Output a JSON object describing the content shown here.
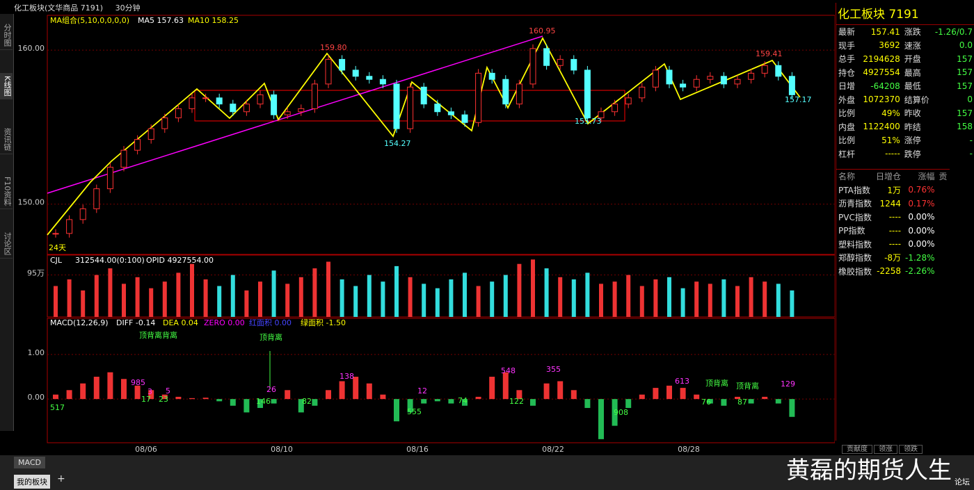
{
  "header": {
    "title": "化工板块(文华商品 7191)",
    "period": "30分钟"
  },
  "side_tabs": [
    "分时图",
    "K线图",
    "资讯链",
    "F10资料",
    "讨论区"
  ],
  "price_panel": {
    "legend": [
      "MA组合(5,10,0,0,0,0)",
      "MA5 157.63",
      "MA10 158.25"
    ],
    "ylim": [
      146.74,
      162.26
    ],
    "yticks": [
      {
        "value": 160,
        "label": "160.00"
      },
      {
        "value": 150,
        "label": "150.00"
      }
    ],
    "closes": [
      148.1,
      149.0,
      149.7,
      151.0,
      152.4,
      153.5,
      154.2,
      154.9,
      155.6,
      156.2,
      156.9,
      156.9,
      156.5,
      156.0,
      156.5,
      157.1,
      155.8,
      156.0,
      156.2,
      157.8,
      159.4,
      158.7,
      158.3,
      158.1,
      157.8,
      154.9,
      157.6,
      156.5,
      156.0,
      155.8,
      155.3,
      158.5,
      158.1,
      156.5,
      157.8,
      160.1,
      159.0,
      159.4,
      158.7,
      155.6,
      156.0,
      156.5,
      156.9,
      157.6,
      158.7,
      157.8,
      157.6,
      158.1,
      158.3,
      157.8,
      158.1,
      158.5,
      159.0,
      158.3,
      157.1
    ],
    "annotations": [
      "159.80",
      "160.95",
      "154.27",
      "155.73",
      "159.41",
      "157.17"
    ],
    "period_label": "24天"
  },
  "volume_panel": {
    "legend": [
      "CJL",
      "312544.00(0:100)",
      "OPID 4927554.00"
    ],
    "ylim": [
      0,
      140
    ],
    "yticks": [
      {
        "value": 95,
        "label": "95万"
      }
    ],
    "values": [
      70,
      85,
      60,
      95,
      110,
      75,
      90,
      65,
      80,
      100,
      120,
      85,
      70,
      95,
      60,
      80,
      105,
      75,
      90,
      110,
      125,
      85,
      70,
      95,
      80,
      115,
      90,
      75,
      65,
      85,
      100,
      70,
      80,
      95,
      120,
      130,
      110,
      90,
      85,
      100,
      75,
      80,
      95,
      70,
      85,
      90,
      65,
      80,
      75,
      85,
      70,
      90,
      80,
      75,
      60
    ]
  },
  "macd_panel": {
    "legend": [
      "MACD(12,26,9)",
      "DIFF -0.14",
      "DEA 0.04",
      "ZERO 0.00",
      "红面积 0.00",
      "绿面积 -1.50"
    ],
    "ylim": [
      -0.98,
      1.81
    ],
    "yticks": [
      {
        "value": 1,
        "label": "1.00"
      },
      {
        "value": 0,
        "label": "0.00"
      }
    ],
    "values": [
      0.1,
      0.2,
      0.35,
      0.5,
      0.6,
      0.45,
      0.3,
      0.2,
      0.1,
      0.05,
      0.02,
      0.03,
      -0.05,
      -0.15,
      -0.3,
      -0.2,
      -0.1,
      0.2,
      -0.3,
      -0.15,
      0.2,
      0.4,
      0.5,
      0.35,
      0.1,
      -0.5,
      -0.3,
      -0.1,
      -0.05,
      -0.1,
      -0.15,
      0.05,
      0.5,
      0.6,
      0.2,
      -0.15,
      0.35,
      0.4,
      0.2,
      -0.2,
      -0.9,
      -0.6,
      -0.2,
      0.1,
      0.25,
      0.3,
      0.25,
      0.1,
      -0.1,
      -0.15,
      0.05,
      -0.1,
      0.05,
      -0.1,
      -0.4
    ],
    "annotations": [
      "517",
      "顶背离背离",
      "985",
      "3",
      "17",
      "23",
      "5",
      "顶背离",
      "26",
      "146",
      "82",
      "138",
      "555",
      "12",
      "74",
      "548",
      "122",
      "355",
      "908",
      "613",
      "76",
      "顶背离",
      "87",
      "顶背离",
      "129"
    ]
  },
  "x_axis": [
    "08/06",
    "08/10",
    "08/16",
    "08/22",
    "08/28"
  ],
  "quote": {
    "title": "化工板块 7191",
    "rows": [
      [
        "最新",
        "157.41",
        "涨跌",
        "-1.26/0.7"
      ],
      [
        "现手",
        "3692",
        "速涨",
        "0.0"
      ],
      [
        "总手",
        "2194628",
        "开盘",
        "157"
      ],
      [
        "持仓",
        "4927554",
        "最高",
        "157"
      ],
      [
        "日增",
        "-64208",
        "最低",
        "157"
      ],
      [
        "外盘",
        "1072370",
        "结算价",
        "0"
      ],
      [
        "比例",
        "49%",
        "昨收",
        "157"
      ],
      [
        "内盘",
        "1122400",
        "昨结",
        "158"
      ],
      [
        "比例",
        "51%",
        "涨停",
        "-"
      ],
      [
        "杠杆",
        "-----",
        "跌停",
        "-"
      ]
    ]
  },
  "sector_list": {
    "header": [
      "名称",
      "日增仓",
      "涨幅",
      "贡"
    ],
    "rows": [
      [
        "PTA指数",
        "1万",
        "0.76%"
      ],
      [
        "沥青指数",
        "1244",
        "0.17%"
      ],
      [
        "PVC指数",
        "----",
        "0.00%"
      ],
      [
        "PP指数",
        "----",
        "0.00%"
      ],
      [
        "塑料指数",
        "----",
        "0.00%"
      ],
      [
        "郑醇指数",
        "-8万",
        "-1.28%"
      ],
      [
        "橡胶指数",
        "-2258",
        "-2.26%"
      ]
    ]
  },
  "bottom_tabs": [
    "贡献度",
    "领涨",
    "领跌"
  ],
  "toolbar": {
    "button": "MACD",
    "tab": "我的板块",
    "add": "+"
  },
  "watermark": "黄磊的期货人生",
  "forum": "论坛"
}
